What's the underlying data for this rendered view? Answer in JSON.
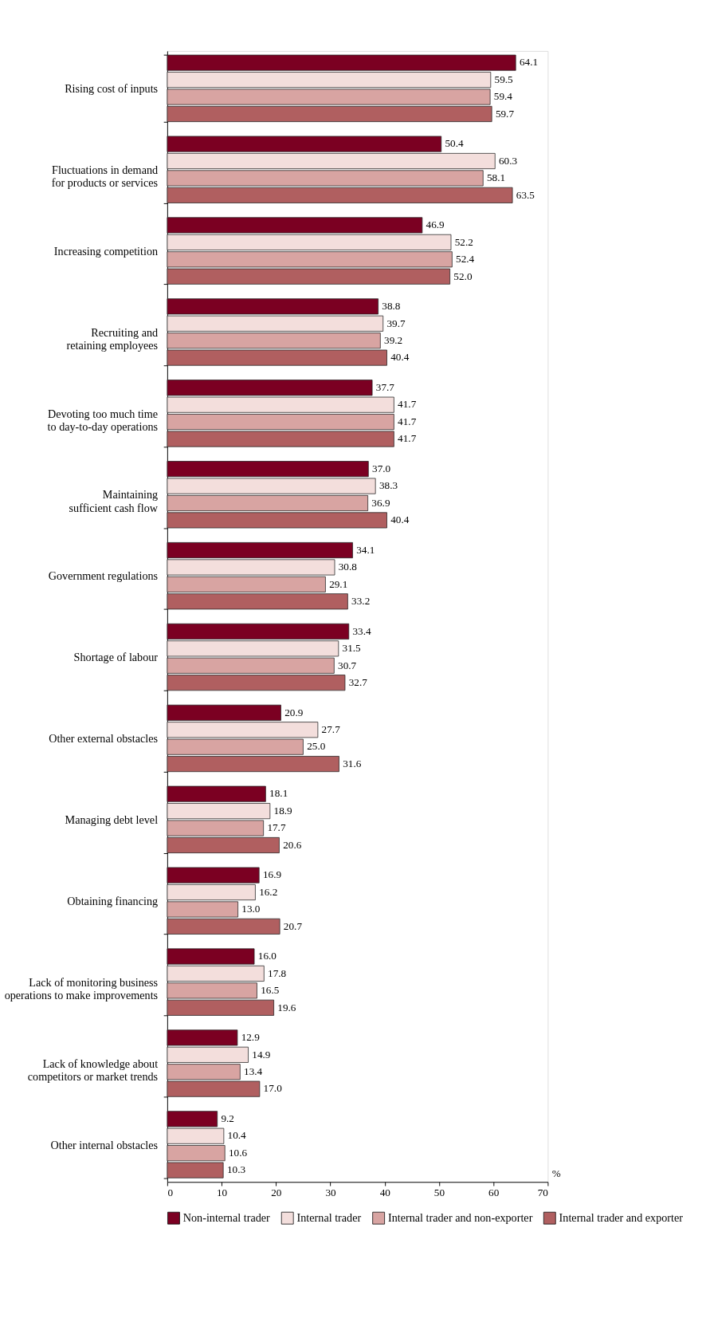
{
  "chart_data": {
    "type": "bar",
    "orientation": "horizontal",
    "categories": [
      "Rising cost of inputs",
      "Fluctuations in demand for products or services",
      "Increasing competition",
      "Recruiting and retaining employees",
      "Devoting too much time to day-to-day operations",
      "Maintaining sufficient cash flow",
      "Government regulations",
      "Shortage of labour",
      "Other external obstacles",
      "Managing debt level",
      "Obtaining financing",
      "Lack of monitoring business operations to make improvements",
      "Lack of knowledge about competitors or market trends",
      "Other internal obstacles"
    ],
    "series": [
      {
        "name": "Non-internal trader",
        "color": "#7b0022",
        "values": [
          64.1,
          50.4,
          46.9,
          38.8,
          37.7,
          37.0,
          34.1,
          33.4,
          20.9,
          18.1,
          16.9,
          16.0,
          12.9,
          9.2
        ],
        "value_labels": [
          "64.1",
          "50.4",
          "46.9",
          "38.8",
          "37.7",
          "37.0",
          "34.1",
          "33.4",
          "20.9",
          "18.1",
          "16.9",
          "16.0",
          "12.9",
          "9.2"
        ]
      },
      {
        "name": "Internal trader",
        "color": "#f3dedc",
        "values": [
          59.5,
          60.3,
          52.2,
          39.7,
          41.7,
          38.3,
          30.8,
          31.5,
          27.7,
          18.9,
          16.2,
          17.8,
          14.9,
          10.4
        ],
        "value_labels": [
          "59.5",
          "60.3",
          "52.2",
          "39.7",
          "41.7",
          "38.3",
          "30.8",
          "31.5",
          "27.7",
          "18.9",
          "16.2",
          "17.8",
          "14.9",
          "10.4"
        ]
      },
      {
        "name": "Internal trader and non-exporter",
        "color": "#d8a4a2",
        "values": [
          59.4,
          58.1,
          52.4,
          39.2,
          41.7,
          36.9,
          29.1,
          30.7,
          25.0,
          17.7,
          13.0,
          16.5,
          13.4,
          10.6
        ],
        "value_labels": [
          "59.4",
          "58.1",
          "52.4",
          "39.2",
          "41.7",
          "36.9",
          "29.1",
          "30.7",
          "25.0",
          "17.7",
          "13.0",
          "16.5",
          "13.4",
          "10.6"
        ]
      },
      {
        "name": "Internal trader and exporter",
        "color": "#b05f60",
        "values": [
          59.7,
          63.5,
          52.0,
          40.4,
          41.7,
          40.4,
          33.2,
          32.7,
          31.6,
          20.6,
          20.7,
          19.6,
          17.0,
          10.3
        ],
        "value_labels": [
          "59.7",
          "63.5",
          "52.0",
          "40.4",
          "41.7",
          "40.4",
          "33.2",
          "32.7",
          "31.6",
          "20.6",
          "20.7",
          "19.6",
          "17.0",
          "10.3"
        ]
      }
    ],
    "xlabel": "%",
    "xlim": [
      0,
      70
    ],
    "xticks": [
      0,
      10,
      20,
      30,
      40,
      50,
      60,
      70
    ],
    "legend": "bottom",
    "grid": false
  }
}
